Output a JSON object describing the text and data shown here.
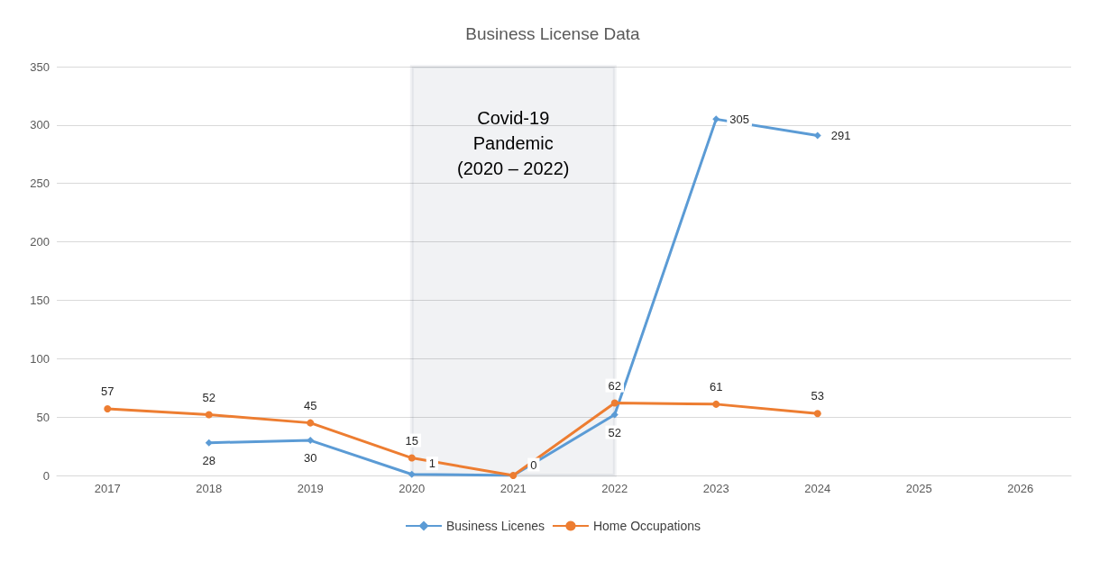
{
  "chart_data": {
    "type": "line",
    "title": "Business License Data",
    "categories": [
      "2017",
      "2018",
      "2019",
      "2020",
      "2021",
      "2022",
      "2023",
      "2024",
      "2025",
      "2026"
    ],
    "series": [
      {
        "name": "Business Licenes",
        "color": "#5b9bd5",
        "marker": "diamond",
        "values": [
          null,
          28,
          30,
          1,
          0,
          52,
          305,
          291,
          null,
          null
        ],
        "value_labels": [
          null,
          "28",
          "30",
          "1",
          "0",
          "52",
          "305",
          "291",
          null,
          null
        ]
      },
      {
        "name": "Home Occupations",
        "color": "#ed7d31",
        "marker": "circle",
        "values": [
          57,
          52,
          45,
          15,
          0,
          62,
          61,
          53,
          null,
          null
        ],
        "value_labels": [
          "57",
          "52",
          "45",
          "15",
          null,
          "62",
          "61",
          "53",
          null,
          null
        ]
      }
    ],
    "ylim": [
      0,
      350
    ],
    "yticks": [
      0,
      50,
      100,
      150,
      200,
      250,
      300,
      350
    ],
    "grid": "y",
    "legend": "bottom",
    "line_style": "solid",
    "bands": [
      {
        "axis": "x",
        "from": "2020",
        "to": "2022",
        "label": "Covid-19\nPandemic\n(2020 – 2022)",
        "color": "#0e2841"
      }
    ]
  }
}
